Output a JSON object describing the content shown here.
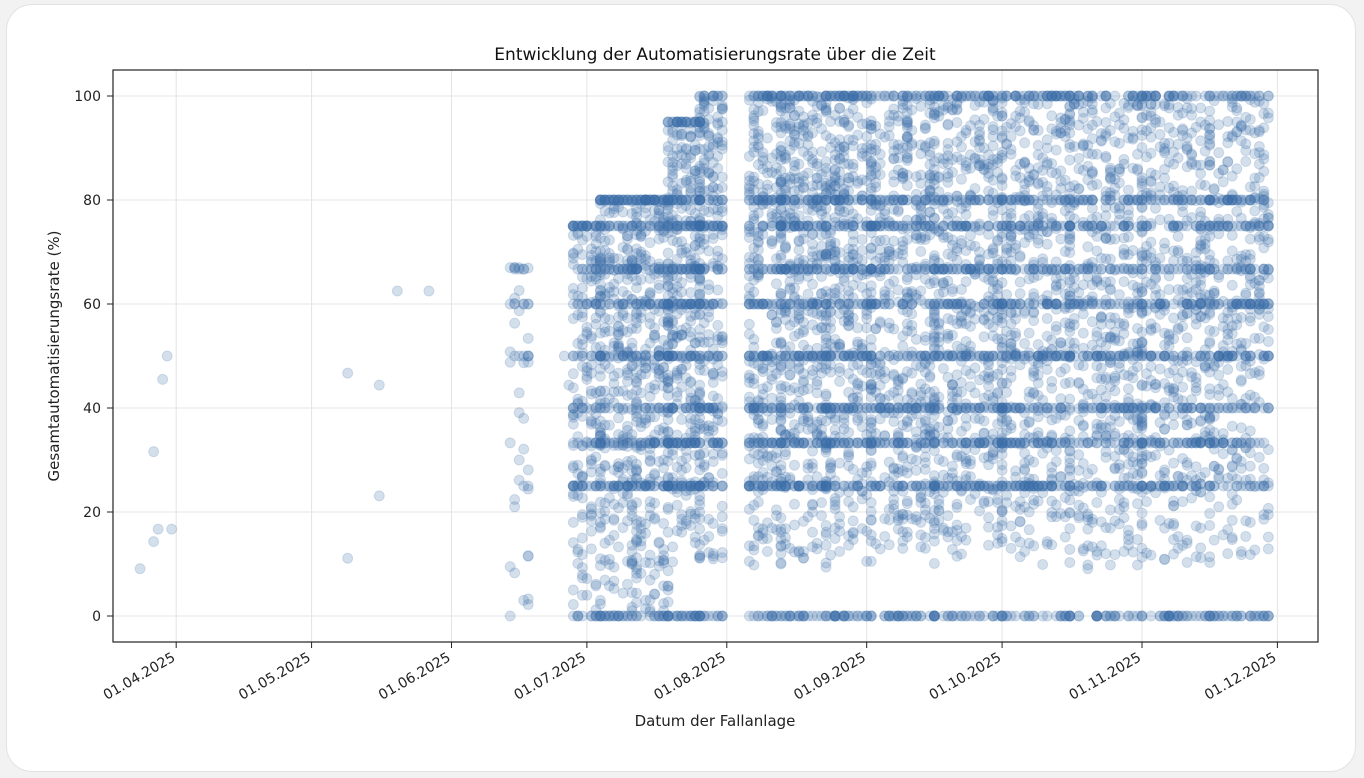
{
  "chart_data": {
    "type": "scatter",
    "title": "Entwicklung der Automatisierungsrate über die Zeit",
    "xlabel": "Datum der Fallanlage",
    "ylabel": "Gesamtautomatisierungsrate (%)",
    "x_ticks": [
      "01.04.2025",
      "01.05.2025",
      "01.06.2025",
      "01.07.2025",
      "01.08.2025",
      "01.09.2025",
      "01.10.2025",
      "01.11.2025",
      "01.12.2025"
    ],
    "x_tick_dates": [
      "2025-04-01",
      "2025-05-01",
      "2025-06-01",
      "2025-07-01",
      "2025-08-01",
      "2025-09-01",
      "2025-10-01",
      "2025-11-01",
      "2025-12-01"
    ],
    "xlim": [
      "2025-03-18",
      "2025-12-10"
    ],
    "y_ticks": [
      0,
      20,
      40,
      60,
      80,
      100
    ],
    "ylim": [
      -5,
      105
    ],
    "grid": true,
    "marker_color": "#3b6ea8",
    "marker_alpha": 0.22,
    "points": [
      [
        "2025-03-24",
        9.1
      ],
      [
        "2025-03-27",
        14.3
      ],
      [
        "2025-03-27",
        31.6
      ],
      [
        "2025-03-28",
        16.7
      ],
      [
        "2025-03-29",
        45.5
      ],
      [
        "2025-03-30",
        50
      ],
      [
        "2025-03-31",
        16.7
      ],
      [
        "2025-05-09",
        11.1
      ],
      [
        "2025-05-09",
        46.7
      ],
      [
        "2025-05-16",
        44.4
      ],
      [
        "2025-05-16",
        23.1
      ],
      [
        "2025-05-20",
        62.5
      ],
      [
        "2025-05-27",
        62.5
      ],
      [
        "2025-06-14",
        0
      ],
      [
        "2025-06-15",
        8.3
      ],
      [
        "2025-06-15",
        61.1
      ],
      [
        "2025-06-16",
        42.9
      ],
      [
        "2025-06-16",
        50
      ],
      [
        "2025-06-17",
        66.7
      ],
      [
        "2025-06-17",
        25
      ],
      [
        "2025-06-26",
        50
      ],
      [
        "2025-06-27",
        44.4
      ]
    ],
    "bands": [
      {
        "start": "2025-06-14",
        "end": "2025-06-18",
        "y_min": 0,
        "y_max": 67,
        "count": 45
      },
      {
        "start": "2025-06-28",
        "end": "2025-07-04",
        "y_min": 0,
        "y_max": 75,
        "count": 260
      },
      {
        "start": "2025-07-04",
        "end": "2025-07-12",
        "y_min": 0,
        "y_max": 80,
        "count": 420
      },
      {
        "start": "2025-07-12",
        "end": "2025-07-19",
        "y_min": 0,
        "y_max": 80,
        "count": 380
      },
      {
        "start": "2025-07-19",
        "end": "2025-07-26",
        "y_min": 10,
        "y_max": 95,
        "count": 520
      },
      {
        "start": "2025-07-26",
        "end": "2025-07-31",
        "y_min": 10,
        "y_max": 100,
        "count": 330
      },
      {
        "start": "2025-08-06",
        "end": "2025-08-13",
        "y_min": 8,
        "y_max": 100,
        "count": 430
      },
      {
        "start": "2025-08-13",
        "end": "2025-08-23",
        "y_min": 9,
        "y_max": 100,
        "count": 620
      },
      {
        "start": "2025-08-23",
        "end": "2025-09-02",
        "y_min": 9,
        "y_max": 100,
        "count": 580
      },
      {
        "start": "2025-09-02",
        "end": "2025-09-16",
        "y_min": 10,
        "y_max": 100,
        "count": 720
      },
      {
        "start": "2025-09-16",
        "end": "2025-10-01",
        "y_min": 10,
        "y_max": 100,
        "count": 760
      },
      {
        "start": "2025-10-01",
        "end": "2025-10-16",
        "y_min": 9,
        "y_max": 100,
        "count": 720
      },
      {
        "start": "2025-10-16",
        "end": "2025-11-01",
        "y_min": 9,
        "y_max": 100,
        "count": 720
      },
      {
        "start": "2025-11-01",
        "end": "2025-11-16",
        "y_min": 10,
        "y_max": 100,
        "count": 660
      },
      {
        "start": "2025-11-16",
        "end": "2025-11-29",
        "y_min": 10,
        "y_max": 100,
        "count": 560
      }
    ],
    "discrete_levels": [
      0,
      25,
      33.3,
      40,
      50,
      60,
      66.7,
      75,
      80,
      100
    ]
  }
}
